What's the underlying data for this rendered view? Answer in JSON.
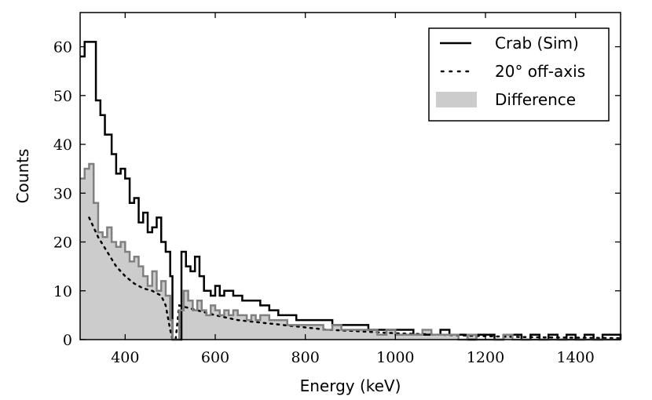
{
  "chart_data": {
    "type": "histogram",
    "xlabel": "Energy (keV)",
    "ylabel": "Counts",
    "xlim": [
      300,
      1500
    ],
    "ylim": [
      0,
      67
    ],
    "xticks": [
      {
        "value": 400,
        "label": "400"
      },
      {
        "value": 600,
        "label": "600"
      },
      {
        "value": 800,
        "label": "800"
      },
      {
        "value": 1000,
        "label": "1000"
      },
      {
        "value": 1200,
        "label": "1200"
      },
      {
        "value": 1400,
        "label": "1400"
      }
    ],
    "yticks": [
      {
        "value": 0,
        "label": "0"
      },
      {
        "value": 10,
        "label": "10"
      },
      {
        "value": 20,
        "label": "20"
      },
      {
        "value": 30,
        "label": "30"
      },
      {
        "value": 40,
        "label": "40"
      },
      {
        "value": 50,
        "label": "50"
      },
      {
        "value": 60,
        "label": "60"
      }
    ],
    "legend_position": "top-right",
    "legend": [
      {
        "label": "Crab (Sim)",
        "style": "solid",
        "color": "#000000"
      },
      {
        "label": "20° off-axis",
        "style": "dotted",
        "color": "#000000"
      },
      {
        "label": "Difference",
        "style": "filled",
        "color": "#cccccc"
      }
    ],
    "series": [
      {
        "name": "Crab (Sim)",
        "style": "step-solid",
        "color": "#000000",
        "points": [
          [
            300,
            58
          ],
          [
            310,
            61
          ],
          [
            325,
            61
          ],
          [
            335,
            49
          ],
          [
            345,
            46
          ],
          [
            355,
            42
          ],
          [
            370,
            38
          ],
          [
            380,
            34
          ],
          [
            390,
            35
          ],
          [
            400,
            33
          ],
          [
            410,
            28
          ],
          [
            420,
            29
          ],
          [
            430,
            24
          ],
          [
            440,
            26
          ],
          [
            450,
            22
          ],
          [
            460,
            23
          ],
          [
            470,
            25
          ],
          [
            480,
            20
          ],
          [
            490,
            18
          ],
          [
            500,
            13
          ],
          [
            505,
            0
          ],
          [
            510,
            0
          ],
          [
            520,
            0
          ],
          [
            525,
            18
          ],
          [
            535,
            15
          ],
          [
            545,
            14
          ],
          [
            555,
            17
          ],
          [
            565,
            13
          ],
          [
            575,
            10
          ],
          [
            590,
            9
          ],
          [
            600,
            11
          ],
          [
            610,
            9
          ],
          [
            620,
            10
          ],
          [
            630,
            10
          ],
          [
            640,
            9
          ],
          [
            650,
            9
          ],
          [
            660,
            8
          ],
          [
            670,
            8
          ],
          [
            690,
            8
          ],
          [
            700,
            7
          ],
          [
            710,
            7
          ],
          [
            720,
            6
          ],
          [
            730,
            6
          ],
          [
            740,
            5
          ],
          [
            760,
            5
          ],
          [
            780,
            4
          ],
          [
            800,
            4
          ],
          [
            820,
            4
          ],
          [
            840,
            4
          ],
          [
            860,
            3
          ],
          [
            880,
            3
          ],
          [
            900,
            3
          ],
          [
            920,
            3
          ],
          [
            940,
            2
          ],
          [
            960,
            2
          ],
          [
            980,
            2
          ],
          [
            1000,
            2
          ],
          [
            1020,
            2
          ],
          [
            1040,
            1
          ],
          [
            1060,
            1
          ],
          [
            1080,
            1
          ],
          [
            1100,
            2
          ],
          [
            1120,
            1
          ],
          [
            1140,
            1
          ],
          [
            1160,
            0
          ],
          [
            1180,
            1
          ],
          [
            1200,
            1
          ],
          [
            1220,
            0
          ],
          [
            1240,
            1
          ],
          [
            1260,
            1
          ],
          [
            1280,
            0
          ],
          [
            1300,
            1
          ],
          [
            1320,
            0
          ],
          [
            1340,
            1
          ],
          [
            1360,
            0
          ],
          [
            1380,
            1
          ],
          [
            1400,
            0
          ],
          [
            1420,
            1
          ],
          [
            1440,
            0
          ],
          [
            1460,
            1
          ],
          [
            1480,
            1
          ],
          [
            1500,
            0
          ]
        ]
      },
      {
        "name": "20° off-axis",
        "style": "dotted",
        "color": "#000000",
        "points": [
          [
            320,
            25
          ],
          [
            340,
            21
          ],
          [
            360,
            18
          ],
          [
            380,
            15
          ],
          [
            400,
            13
          ],
          [
            420,
            11.5
          ],
          [
            440,
            10.5
          ],
          [
            460,
            10
          ],
          [
            480,
            9
          ],
          [
            490,
            7
          ],
          [
            500,
            2
          ],
          [
            505,
            0
          ],
          [
            512,
            0
          ],
          [
            520,
            7
          ],
          [
            540,
            6.5
          ],
          [
            560,
            6
          ],
          [
            580,
            5.5
          ],
          [
            600,
            5
          ],
          [
            650,
            4
          ],
          [
            700,
            3.5
          ],
          [
            750,
            3
          ],
          [
            800,
            2.5
          ],
          [
            850,
            2
          ],
          [
            900,
            1.8
          ],
          [
            1000,
            1.3
          ],
          [
            1100,
            1
          ],
          [
            1200,
            0.7
          ],
          [
            1300,
            0.5
          ],
          [
            1400,
            0.4
          ],
          [
            1500,
            0.3
          ]
        ]
      },
      {
        "name": "Difference",
        "style": "filled-step",
        "color": "#cccccc",
        "edge_color": "#808080",
        "points": [
          [
            300,
            33
          ],
          [
            310,
            35
          ],
          [
            320,
            36
          ],
          [
            330,
            28
          ],
          [
            340,
            22
          ],
          [
            350,
            21
          ],
          [
            360,
            23
          ],
          [
            370,
            20
          ],
          [
            380,
            19
          ],
          [
            390,
            20
          ],
          [
            400,
            18
          ],
          [
            410,
            16
          ],
          [
            420,
            17
          ],
          [
            430,
            15
          ],
          [
            440,
            13
          ],
          [
            450,
            11
          ],
          [
            460,
            14
          ],
          [
            470,
            10
          ],
          [
            480,
            12
          ],
          [
            490,
            9
          ],
          [
            500,
            4
          ],
          [
            505,
            0
          ],
          [
            510,
            0
          ],
          [
            520,
            6
          ],
          [
            530,
            10
          ],
          [
            540,
            8
          ],
          [
            550,
            6
          ],
          [
            560,
            8
          ],
          [
            570,
            6
          ],
          [
            580,
            5
          ],
          [
            590,
            7
          ],
          [
            600,
            6
          ],
          [
            610,
            5
          ],
          [
            620,
            6
          ],
          [
            630,
            5
          ],
          [
            640,
            6
          ],
          [
            650,
            5
          ],
          [
            660,
            5
          ],
          [
            670,
            4
          ],
          [
            680,
            5
          ],
          [
            690,
            4
          ],
          [
            700,
            5
          ],
          [
            720,
            4
          ],
          [
            740,
            4
          ],
          [
            760,
            3
          ],
          [
            780,
            3
          ],
          [
            800,
            3
          ],
          [
            820,
            3
          ],
          [
            840,
            2
          ],
          [
            860,
            3
          ],
          [
            880,
            2
          ],
          [
            900,
            2
          ],
          [
            920,
            2
          ],
          [
            940,
            2
          ],
          [
            960,
            1
          ],
          [
            980,
            2
          ],
          [
            1000,
            1
          ],
          [
            1020,
            1
          ],
          [
            1040,
            1
          ],
          [
            1060,
            2
          ],
          [
            1080,
            1
          ],
          [
            1100,
            1
          ],
          [
            1120,
            1
          ],
          [
            1140,
            0
          ],
          [
            1160,
            1
          ],
          [
            1180,
            0
          ],
          [
            1200,
            0
          ],
          [
            1220,
            0
          ],
          [
            1240,
            1
          ],
          [
            1260,
            0
          ],
          [
            1300,
            0
          ],
          [
            1340,
            0
          ],
          [
            1380,
            0
          ],
          [
            1420,
            0
          ],
          [
            1460,
            0
          ],
          [
            1500,
            0
          ]
        ]
      }
    ]
  }
}
